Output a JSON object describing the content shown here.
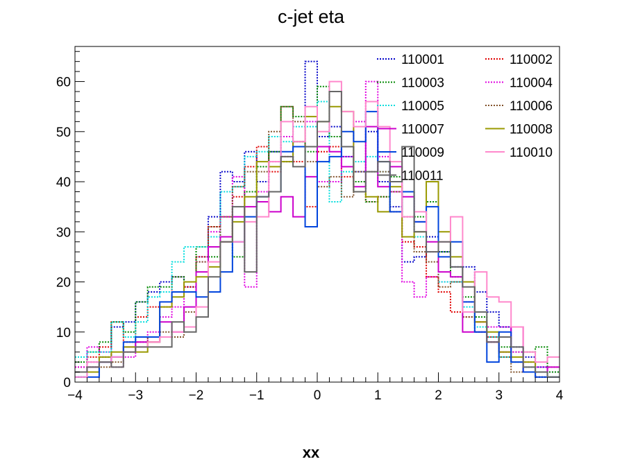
{
  "chart_data": {
    "type": "histogram",
    "title": "c-jet eta",
    "xlabel": "xx",
    "ylabel": "",
    "xlim": [
      -4,
      4
    ],
    "ylim": [
      0,
      67
    ],
    "bin_width": 0.2,
    "x_ticks": [
      -4,
      -3,
      -2,
      -1,
      0,
      1,
      2,
      3,
      4
    ],
    "y_ticks": [
      0,
      10,
      20,
      30,
      40,
      50,
      60
    ],
    "legend_position": "top-right",
    "grid": false,
    "series": [
      {
        "name": "110001",
        "color": "#0000c8",
        "style": "dotted",
        "values": [
          1,
          4,
          5,
          11,
          12,
          16,
          18,
          20,
          21,
          19,
          25,
          33,
          42,
          40,
          46,
          40,
          46,
          44,
          48,
          64,
          49,
          51,
          45,
          42,
          50,
          40,
          35,
          24,
          25,
          29,
          26,
          23,
          23,
          18,
          14,
          11,
          7,
          5,
          3,
          2
        ]
      },
      {
        "name": "110002",
        "color": "#e00000",
        "style": "dotted",
        "values": [
          3,
          5,
          7,
          12,
          8,
          13,
          15,
          15,
          21,
          19,
          25,
          31,
          33,
          37,
          43,
          47,
          42,
          45,
          44,
          35,
          46,
          47,
          41,
          38,
          36,
          37,
          34,
          28,
          27,
          21,
          18,
          14,
          13,
          12,
          9,
          6,
          4,
          2,
          1,
          3
        ]
      },
      {
        "name": "110003",
        "color": "#008800",
        "style": "dotted",
        "values": [
          4,
          6,
          8,
          12,
          10,
          16,
          19,
          19,
          21,
          20,
          27,
          25,
          33,
          25,
          38,
          43,
          46,
          55,
          53,
          46,
          59,
          49,
          47,
          40,
          36,
          37,
          41,
          38,
          33,
          36,
          26,
          21,
          17,
          13,
          9,
          7,
          6,
          6,
          7,
          2
        ]
      },
      {
        "name": "110004",
        "color": "#e000e0",
        "style": "dotted",
        "values": [
          3,
          7,
          6,
          3,
          5,
          8,
          10,
          13,
          15,
          20,
          24,
          30,
          33,
          41,
          19,
          38,
          44,
          49,
          47,
          52,
          40,
          40,
          45,
          52,
          60,
          45,
          38,
          20,
          17,
          21,
          20,
          20,
          16,
          12,
          11,
          11,
          6,
          4,
          3,
          1
        ]
      },
      {
        "name": "110005",
        "color": "#00dddd",
        "style": "dotted",
        "values": [
          5,
          6,
          6,
          12,
          9,
          12,
          17,
          18,
          24,
          27,
          27,
          29,
          38,
          39,
          45,
          46,
          49,
          48,
          51,
          51,
          56,
          36,
          42,
          44,
          45,
          42,
          40,
          33,
          29,
          26,
          20,
          20,
          15,
          11,
          9,
          5,
          4,
          3,
          2,
          1
        ]
      },
      {
        "name": "110006",
        "color": "#805028",
        "style": "dotted",
        "values": [
          2,
          3,
          3,
          4,
          6,
          8,
          9,
          10,
          9,
          14,
          24,
          31,
          29,
          39,
          42,
          42,
          50,
          55,
          52,
          44,
          39,
          41,
          37,
          42,
          42,
          42,
          38,
          33,
          26,
          24,
          19,
          20,
          13,
          10,
          8,
          5,
          2,
          2,
          1,
          1
        ]
      },
      {
        "name": "110007",
        "color": "#cc00cc",
        "style": "solid",
        "values": [
          2,
          3,
          4,
          5,
          7,
          8,
          8,
          12,
          10,
          15,
          22,
          27,
          29,
          33,
          35,
          36,
          34,
          37,
          33,
          41,
          47,
          46,
          43,
          39,
          51,
          39,
          43,
          37,
          32,
          28,
          22,
          21,
          10,
          10,
          8,
          6,
          11,
          2,
          2,
          3
        ]
      },
      {
        "name": "110008",
        "color": "#999900",
        "style": "solid",
        "values": [
          2,
          2,
          5,
          6,
          7,
          6,
          8,
          15,
          17,
          20,
          21,
          23,
          28,
          32,
          37,
          44,
          43,
          44,
          48,
          53,
          52,
          55,
          54,
          38,
          37,
          34,
          39,
          29,
          30,
          40,
          30,
          25,
          20,
          12,
          10,
          6,
          5,
          4,
          2,
          1
        ]
      },
      {
        "name": "110009",
        "color": "#0044dd",
        "style": "solid",
        "values": [
          1,
          1,
          4,
          5,
          8,
          9,
          9,
          16,
          18,
          18,
          17,
          18,
          22,
          28,
          33,
          37,
          38,
          46,
          47,
          31,
          44,
          45,
          50,
          48,
          54,
          44,
          34,
          38,
          32,
          35,
          25,
          28,
          16,
          10,
          4,
          10,
          4,
          2,
          1,
          1
        ]
      },
      {
        "name": "110010",
        "color": "#ff88cc",
        "style": "solid",
        "values": [
          1,
          4,
          4,
          5,
          6,
          7,
          8,
          9,
          10,
          11,
          15,
          24,
          28,
          28,
          32,
          33,
          44,
          52,
          48,
          55,
          50,
          60,
          54,
          51,
          56,
          51,
          44,
          33,
          34,
          26,
          28,
          33,
          14,
          22,
          17,
          16,
          11,
          6,
          4,
          5
        ]
      },
      {
        "name": "110011",
        "color": "#666666",
        "style": "solid",
        "values": [
          2,
          3,
          4,
          3,
          6,
          7,
          7,
          7,
          12,
          10,
          13,
          21,
          28,
          35,
          22,
          37,
          38,
          45,
          43,
          47,
          52,
          58,
          47,
          38,
          42,
          44,
          40,
          47,
          30,
          26,
          28,
          23,
          19,
          14,
          8,
          9,
          7,
          3,
          2,
          1
        ]
      }
    ]
  }
}
